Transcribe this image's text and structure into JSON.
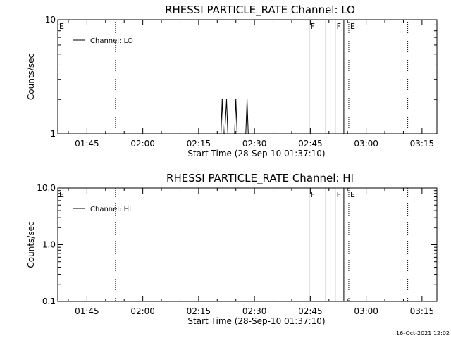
{
  "chart_data": [
    {
      "type": "line",
      "title": "RHESSI PARTICLE_RATE Channel: LO",
      "xlabel": "Start Time (28-Sep-10 01:37:10)",
      "ylabel": "Counts/sec",
      "yscale": "log",
      "xlim": [
        "01:37:10",
        "03:19:00"
      ],
      "ylim": [
        1,
        10
      ],
      "x_tick_labels": [
        "01:45",
        "02:00",
        "02:15",
        "02:30",
        "02:45",
        "03:00",
        "03:15"
      ],
      "y_tick_labels": [
        "1",
        "10"
      ],
      "legend": {
        "entries": [
          "Channel: LO"
        ],
        "position": "top-left"
      },
      "series": [
        {
          "name": "Channel: LO",
          "x": [
            "02:21:00",
            "02:21:20",
            "02:21:40",
            "02:22:00",
            "02:22:30",
            "02:22:50",
            "02:23:10",
            "02:24:40",
            "02:25:00",
            "02:25:20",
            "02:25:40",
            "02:26:20",
            "02:27:40",
            "02:28:00",
            "02:28:20"
          ],
          "y": [
            1,
            2,
            1,
            1,
            2,
            1,
            1,
            1,
            2,
            1,
            1,
            1,
            1,
            2,
            1
          ]
        }
      ],
      "annotations": [
        {
          "label": "E",
          "x": "01:37:10",
          "style": "solid"
        },
        {
          "label": "",
          "x": "01:52:40",
          "style": "dotted"
        },
        {
          "label": "F",
          "x": "02:44:40",
          "style": "solid"
        },
        {
          "label": "",
          "x": "02:49:10",
          "style": "solid"
        },
        {
          "label": "F",
          "x": "02:51:40",
          "style": "solid"
        },
        {
          "label": "",
          "x": "02:54:00",
          "style": "solid"
        },
        {
          "label": "E",
          "x": "02:55:20",
          "style": "dotted"
        },
        {
          "label": "",
          "x": "03:11:10",
          "style": "dotted"
        }
      ]
    },
    {
      "type": "line",
      "title": "RHESSI PARTICLE_RATE Channel: HI",
      "xlabel": "Start Time (28-Sep-10 01:37:10)",
      "ylabel": "Counts/sec",
      "yscale": "log",
      "xlim": [
        "01:37:10",
        "03:19:00"
      ],
      "ylim": [
        0.1,
        10
      ],
      "x_tick_labels": [
        "01:45",
        "02:00",
        "02:15",
        "02:30",
        "02:45",
        "03:00",
        "03:15"
      ],
      "y_tick_labels": [
        "0.1",
        "1.0",
        "10.0"
      ],
      "legend": {
        "entries": [
          "Channel: HI"
        ],
        "position": "top-left"
      },
      "series": [
        {
          "name": "Channel: HI",
          "x": [],
          "y": []
        }
      ],
      "annotations": [
        {
          "label": "E",
          "x": "01:37:10",
          "style": "solid"
        },
        {
          "label": "",
          "x": "01:52:40",
          "style": "dotted"
        },
        {
          "label": "F",
          "x": "02:44:40",
          "style": "solid"
        },
        {
          "label": "",
          "x": "02:49:10",
          "style": "solid"
        },
        {
          "label": "F",
          "x": "02:51:40",
          "style": "solid"
        },
        {
          "label": "",
          "x": "02:54:00",
          "style": "solid"
        },
        {
          "label": "E",
          "x": "02:55:20",
          "style": "dotted"
        },
        {
          "label": "",
          "x": "03:11:10",
          "style": "dotted"
        }
      ]
    }
  ],
  "footer_timestamp": "16-Oct-2021 12:02"
}
